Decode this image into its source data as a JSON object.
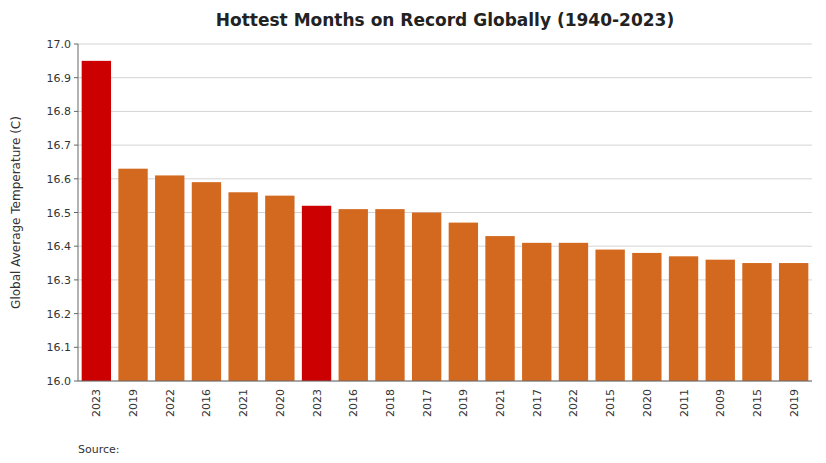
{
  "chart_data": {
    "type": "bar",
    "title": "Hottest Months on Record Globally (1940-2023)",
    "ylabel": "Global Average Temperature (C)",
    "annotation": "Source:",
    "categories": [
      "2023",
      "2019",
      "2022",
      "2016",
      "2021",
      "2020",
      "2023",
      "2016",
      "2018",
      "2017",
      "2019",
      "2021",
      "2017",
      "2022",
      "2015",
      "2020",
      "2011",
      "2009",
      "2015",
      "2019"
    ],
    "values": [
      16.95,
      16.63,
      16.61,
      16.59,
      16.56,
      16.55,
      16.52,
      16.51,
      16.51,
      16.5,
      16.47,
      16.43,
      16.41,
      16.41,
      16.39,
      16.38,
      16.37,
      16.36,
      16.35,
      16.35
    ],
    "colors": [
      "#cc0000",
      "#d2691e",
      "#d2691e",
      "#d2691e",
      "#d2691e",
      "#d2691e",
      "#cc0000",
      "#d2691e",
      "#d2691e",
      "#d2691e",
      "#d2691e",
      "#d2691e",
      "#d2691e",
      "#d2691e",
      "#d2691e",
      "#d2691e",
      "#d2691e",
      "#d2691e",
      "#d2691e",
      "#d2691e"
    ],
    "ylim": [
      16.0,
      17.0
    ],
    "yticks": [
      {
        "value": 16.0,
        "label": "16.0"
      },
      16.1,
      16.2,
      16.3,
      16.4,
      16.5,
      16.6,
      16.7,
      16.8,
      16.9,
      {
        "value": 17.0,
        "label": "17.0"
      }
    ],
    "grid": true
  }
}
